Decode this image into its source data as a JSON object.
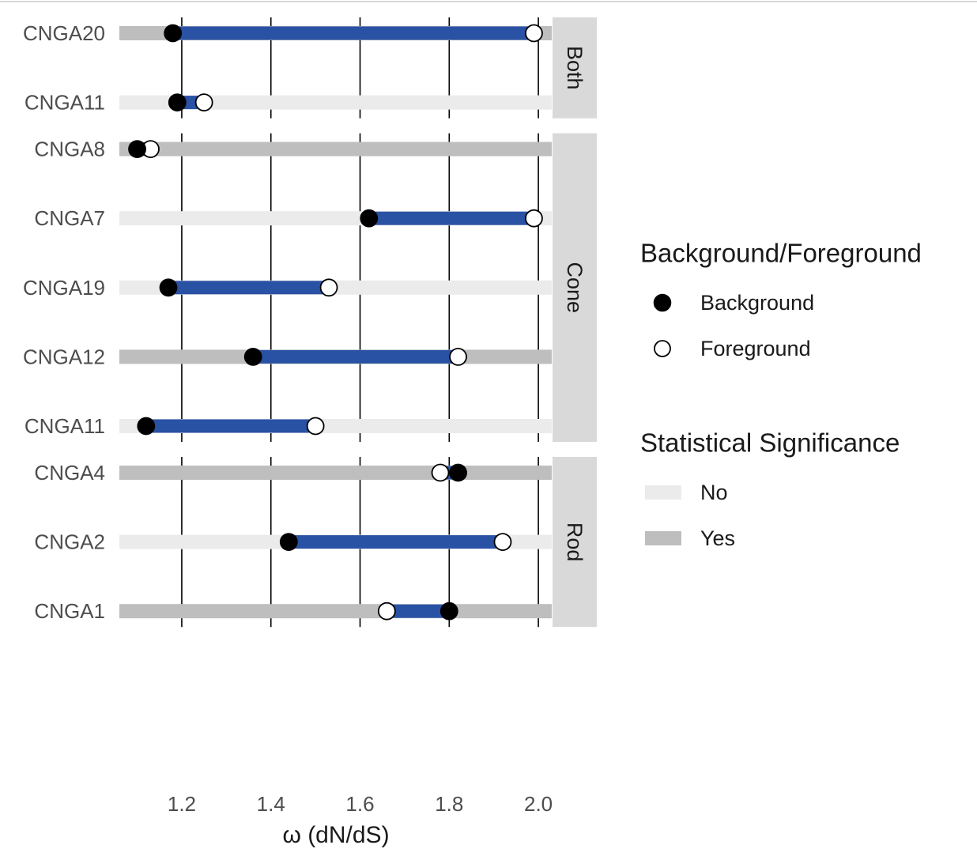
{
  "chart_data": {
    "type": "dumbbell",
    "xlabel": "ω (dN/dS)",
    "xlim": [
      1.06,
      2.03
    ],
    "xticks": [
      1.2,
      1.4,
      1.6,
      1.8,
      2.0
    ],
    "xtick_labels": [
      "1.2",
      "1.4",
      "1.6",
      "1.8",
      "2.0"
    ],
    "grid": "vertical major lines",
    "legend_position": "right",
    "colors": {
      "connector": "#2a52a4",
      "significant_yes": "#bebebe",
      "significant_no": "#ebebeb",
      "strip": "#d9d9d9",
      "background_point": "#000000",
      "foreground_point": "#ffffff"
    },
    "panels": [
      {
        "strip": "Both",
        "rows": [
          {
            "gene": "CNGA20",
            "background": 1.18,
            "foreground": 1.99,
            "significant": "Yes"
          },
          {
            "gene": "CNGA11",
            "background": 1.19,
            "foreground": 1.25,
            "significant": "No"
          }
        ]
      },
      {
        "strip": "Cone",
        "rows": [
          {
            "gene": "CNGA8",
            "background": 1.1,
            "foreground": 1.13,
            "significant": "Yes"
          },
          {
            "gene": "CNGA7",
            "background": 1.62,
            "foreground": 1.99,
            "significant": "No"
          },
          {
            "gene": "CNGA19",
            "background": 1.17,
            "foreground": 1.53,
            "significant": "No"
          },
          {
            "gene": "CNGA12",
            "background": 1.36,
            "foreground": 1.82,
            "significant": "Yes"
          },
          {
            "gene": "CNGA11",
            "background": 1.12,
            "foreground": 1.5,
            "significant": "No"
          }
        ]
      },
      {
        "strip": "Rod",
        "rows": [
          {
            "gene": "CNGA4",
            "background": 1.82,
            "foreground": 1.78,
            "significant": "Yes"
          },
          {
            "gene": "CNGA2",
            "background": 1.44,
            "foreground": 1.92,
            "significant": "No"
          },
          {
            "gene": "CNGA1",
            "background": 1.8,
            "foreground": 1.66,
            "significant": "Yes"
          }
        ]
      }
    ],
    "legends": [
      {
        "title": "Background/Foreground",
        "items": [
          {
            "label": "Background",
            "symbol": "filled-circle"
          },
          {
            "label": "Foreground",
            "symbol": "open-circle"
          }
        ]
      },
      {
        "title": "Statistical Significance",
        "items": [
          {
            "label": "No",
            "symbol": "band-light"
          },
          {
            "label": "Yes",
            "symbol": "band-dark"
          }
        ]
      }
    ]
  }
}
